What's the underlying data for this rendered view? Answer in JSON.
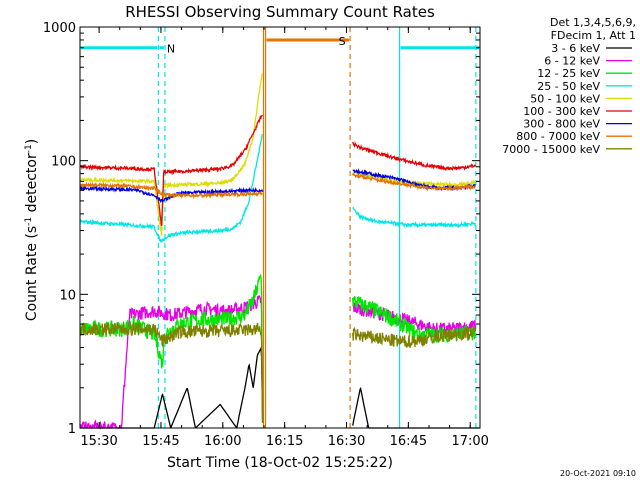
{
  "chart_data": {
    "type": "line",
    "title": "RHESSI Observing Summary Count Rates",
    "xlabel": "Start Time (18-Oct-02 15:25:22)",
    "ylabel_main": "Count Rate (s",
    "ylabel_exp1": "-1",
    "ylabel_mid": " detector",
    "ylabel_exp2": "-1",
    "ylabel_end": ")",
    "y_scale": "log",
    "ylim": [
      1,
      1000
    ],
    "xlim_minutes": [
      0,
      97
    ],
    "x_ticks": [
      {
        "m": 4.63,
        "label": "15:30"
      },
      {
        "m": 19.63,
        "label": "15:45"
      },
      {
        "m": 34.63,
        "label": "16:00"
      },
      {
        "m": 49.63,
        "label": "16:15"
      },
      {
        "m": 64.63,
        "label": "16:30"
      },
      {
        "m": 79.63,
        "label": "16:45"
      },
      {
        "m": 94.63,
        "label": "17:00"
      }
    ],
    "y_ticks": [
      {
        "v": 1,
        "label": "1"
      },
      {
        "v": 10,
        "label": "10"
      },
      {
        "v": 100,
        "label": "100"
      },
      {
        "v": 1000,
        "label": "1000"
      }
    ],
    "legend_header": [
      "Det 1,3,4,5,6,9,",
      "FDecim 1, Att 1"
    ],
    "legend_position": "right",
    "gaps_minutes": [
      [
        44.3,
        66.0
      ]
    ],
    "series": [
      {
        "name": "3 - 6 keV",
        "color": "#000000",
        "points": [
          [
            0,
            1
          ],
          [
            18,
            1
          ],
          [
            20,
            1.8
          ],
          [
            22,
            1
          ],
          [
            26,
            2
          ],
          [
            28,
            1
          ],
          [
            34,
            1.5
          ],
          [
            38,
            1
          ],
          [
            40,
            2
          ],
          [
            41,
            3
          ],
          [
            42,
            2
          ],
          [
            43,
            3.5
          ],
          [
            44,
            4
          ],
          [
            44.3,
            1
          ],
          [
            66,
            1
          ],
          [
            68,
            2
          ],
          [
            70,
            1
          ],
          [
            97,
            1
          ]
        ]
      },
      {
        "name": "6 - 12 keV",
        "color": "#e600e6",
        "points": [
          [
            0,
            1
          ],
          [
            10,
            1
          ],
          [
            12,
            7
          ],
          [
            18,
            7.5
          ],
          [
            22,
            7
          ],
          [
            30,
            7.8
          ],
          [
            36,
            7.5
          ],
          [
            40,
            8
          ],
          [
            42,
            8.5
          ],
          [
            44,
            9
          ],
          [
            44.3,
            1
          ],
          [
            66,
            8
          ],
          [
            70,
            7.5
          ],
          [
            74,
            7
          ],
          [
            78,
            6.5
          ],
          [
            82,
            6
          ],
          [
            86,
            5.5
          ],
          [
            90,
            5.5
          ],
          [
            96,
            5.8
          ]
        ]
      },
      {
        "name": "12 - 25 keV",
        "color": "#00e600",
        "points": [
          [
            0,
            5.5
          ],
          [
            10,
            5.5
          ],
          [
            13,
            6
          ],
          [
            18,
            5
          ],
          [
            20,
            3
          ],
          [
            20.5,
            5
          ],
          [
            24,
            6
          ],
          [
            30,
            6.5
          ],
          [
            36,
            6.5
          ],
          [
            40,
            7
          ],
          [
            42,
            9
          ],
          [
            44,
            14
          ],
          [
            44.3,
            1
          ],
          [
            66,
            9
          ],
          [
            70,
            8
          ],
          [
            74,
            7
          ],
          [
            78,
            6
          ],
          [
            82,
            5
          ],
          [
            86,
            5
          ],
          [
            90,
            5
          ],
          [
            96,
            5.2
          ]
        ]
      },
      {
        "name": "25 - 50 keV",
        "color": "#00e6e6",
        "points": [
          [
            0,
            35
          ],
          [
            12,
            33
          ],
          [
            18,
            32
          ],
          [
            19.5,
            25
          ],
          [
            22,
            28
          ],
          [
            26,
            29
          ],
          [
            30,
            29.5
          ],
          [
            34,
            30
          ],
          [
            37,
            31
          ],
          [
            39,
            35
          ],
          [
            41,
            50
          ],
          [
            42.5,
            85
          ],
          [
            43.5,
            120
          ],
          [
            44.2,
            160
          ],
          [
            66,
            45
          ],
          [
            68,
            38
          ],
          [
            72,
            35
          ],
          [
            76,
            34
          ],
          [
            80,
            33
          ],
          [
            84,
            33
          ],
          [
            88,
            33
          ],
          [
            92,
            33
          ],
          [
            96,
            34
          ]
        ]
      },
      {
        "name": "50 - 100 keV",
        "color": "#dddd00",
        "points": [
          [
            0,
            72
          ],
          [
            10,
            71
          ],
          [
            18,
            70
          ],
          [
            19.8,
            27
          ],
          [
            20.3,
            65
          ],
          [
            24,
            66
          ],
          [
            30,
            67
          ],
          [
            34,
            68
          ],
          [
            37,
            72
          ],
          [
            40,
            95
          ],
          [
            42,
            150
          ],
          [
            43.3,
            300
          ],
          [
            44.2,
            450
          ],
          [
            66,
            82
          ],
          [
            70,
            78
          ],
          [
            74,
            73
          ],
          [
            78,
            70
          ],
          [
            82,
            68
          ],
          [
            86,
            67
          ],
          [
            90,
            66
          ],
          [
            96,
            68
          ]
        ]
      },
      {
        "name": "100 - 300 keV",
        "color": "#e60000",
        "points": [
          [
            0,
            90
          ],
          [
            10,
            88
          ],
          [
            18,
            86
          ],
          [
            19.8,
            32
          ],
          [
            20.3,
            82
          ],
          [
            24,
            83
          ],
          [
            30,
            85
          ],
          [
            34,
            87
          ],
          [
            37,
            92
          ],
          [
            40,
            120
          ],
          [
            42,
            160
          ],
          [
            43.5,
            200
          ],
          [
            44.2,
            220
          ],
          [
            66,
            135
          ],
          [
            68,
            125
          ],
          [
            72,
            115
          ],
          [
            76,
            105
          ],
          [
            80,
            98
          ],
          [
            84,
            92
          ],
          [
            88,
            88
          ],
          [
            92,
            88
          ],
          [
            96,
            92
          ]
        ]
      },
      {
        "name": "300 - 800 keV",
        "color": "#0000e6",
        "points": [
          [
            0,
            62
          ],
          [
            10,
            61
          ],
          [
            14,
            60
          ],
          [
            18,
            55
          ],
          [
            20,
            50
          ],
          [
            24,
            57
          ],
          [
            30,
            58
          ],
          [
            36,
            59
          ],
          [
            40,
            60
          ],
          [
            44.2,
            60
          ],
          [
            66,
            85
          ],
          [
            70,
            80
          ],
          [
            74,
            76
          ],
          [
            78,
            72
          ],
          [
            80,
            68
          ],
          [
            84,
            64
          ],
          [
            88,
            62
          ],
          [
            92,
            63
          ],
          [
            96,
            65
          ]
        ]
      },
      {
        "name": "800 - 7000 keV",
        "color": "#e67300",
        "points": [
          [
            0,
            66
          ],
          [
            10,
            65
          ],
          [
            18,
            62
          ],
          [
            20,
            56
          ],
          [
            24,
            55
          ],
          [
            30,
            55
          ],
          [
            36,
            56
          ],
          [
            40,
            56
          ],
          [
            44.2,
            57
          ],
          [
            66,
            78
          ],
          [
            70,
            74
          ],
          [
            74,
            70
          ],
          [
            78,
            67
          ],
          [
            82,
            64
          ],
          [
            86,
            62
          ],
          [
            90,
            62
          ],
          [
            96,
            64
          ]
        ]
      },
      {
        "name": "7000 - 15000 keV",
        "color": "#808000",
        "points": [
          [
            0,
            5.5
          ],
          [
            18,
            5.5
          ],
          [
            20,
            4.5
          ],
          [
            24,
            5.2
          ],
          [
            30,
            5.3
          ],
          [
            36,
            5.3
          ],
          [
            40,
            5.4
          ],
          [
            44,
            5.5
          ],
          [
            44.3,
            1
          ],
          [
            66,
            5
          ],
          [
            70,
            4.8
          ],
          [
            74,
            4.6
          ],
          [
            78,
            4.4
          ],
          [
            82,
            4.5
          ],
          [
            86,
            4.8
          ],
          [
            90,
            5
          ],
          [
            96,
            5.2
          ]
        ]
      }
    ],
    "annotations": [
      {
        "type": "saa",
        "label": "N",
        "m_start": 19.0,
        "m_end": 20.6,
        "color": "#00e6e6",
        "level": 700
      },
      {
        "type": "saa",
        "label": "",
        "m_start": 0,
        "m_end": 19.0,
        "color": "#00e6e6",
        "level": 700
      },
      {
        "type": "saa",
        "label": "",
        "m_start": 77.5,
        "m_end": 97,
        "color": "#00e6e6",
        "level": 700
      },
      {
        "type": "night",
        "label": "S",
        "m_start": 45.0,
        "m_end": 65.5,
        "color": "#e67300",
        "level": 800
      }
    ],
    "vlines": [
      {
        "m": 19.0,
        "color": "#00e6e6",
        "style": "dashed"
      },
      {
        "m": 20.6,
        "color": "#00e6e6",
        "style": "dashed"
      },
      {
        "m": 44.5,
        "color": "#e67300",
        "style": "solid"
      },
      {
        "m": 45.0,
        "color": "#e67300",
        "style": "solid"
      },
      {
        "m": 65.5,
        "color": "#e67300",
        "style": "dashed"
      },
      {
        "m": 77.5,
        "color": "#00e6e6",
        "style": "solid"
      },
      {
        "m": 96.0,
        "color": "#00e6e6",
        "style": "dashed"
      }
    ],
    "timestamp": "20-Oct-2021 09:10"
  }
}
